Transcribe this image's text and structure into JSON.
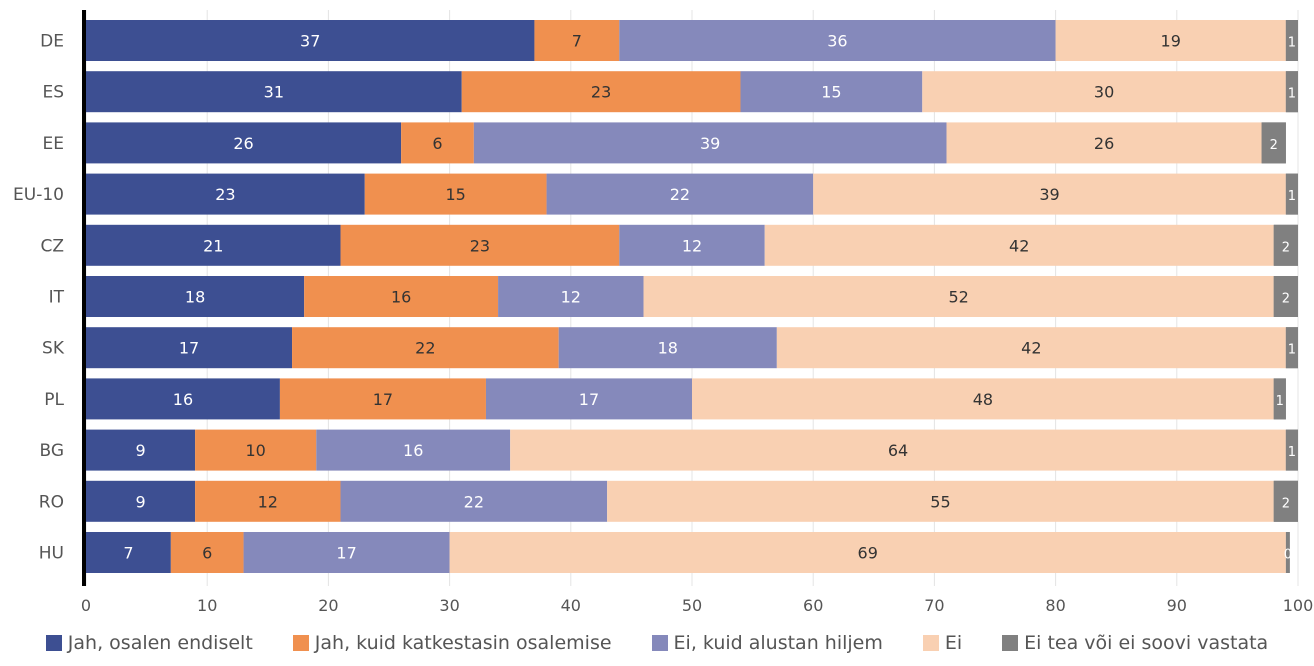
{
  "chart_data": {
    "type": "bar",
    "orientation": "horizontal",
    "stacked": true,
    "categories": [
      "DE",
      "ES",
      "EE",
      "EU-10",
      "CZ",
      "IT",
      "SK",
      "PL",
      "BG",
      "RO",
      "HU"
    ],
    "series": [
      {
        "name": "Jah, osalen endiselt",
        "color": "#3d4f92",
        "values": [
          37,
          31,
          26,
          23,
          21,
          18,
          17,
          16,
          9,
          9,
          7
        ]
      },
      {
        "name": "Jah, kuid katkestasin osalemise",
        "color": "#f0904f",
        "values": [
          7,
          23,
          6,
          15,
          23,
          16,
          22,
          17,
          10,
          12,
          6
        ]
      },
      {
        "name": "Ei, kuid alustan hiljem",
        "color": "#8589bb",
        "values": [
          36,
          15,
          39,
          22,
          12,
          12,
          18,
          17,
          16,
          22,
          17
        ]
      },
      {
        "name": "Ei",
        "color": "#f9d0b2",
        "values": [
          19,
          30,
          26,
          39,
          42,
          52,
          42,
          48,
          64,
          55,
          69
        ]
      },
      {
        "name": "Ei tea või ei soovi vastata",
        "color": "#808080",
        "values": [
          1,
          1,
          2,
          1,
          2,
          2,
          1,
          1,
          1,
          2,
          0
        ]
      }
    ],
    "xlim": [
      0,
      100
    ],
    "xticks": [
      "0",
      "10",
      "20",
      "30",
      "40",
      "50",
      "60",
      "70",
      "80",
      "90",
      "100"
    ],
    "grid": true,
    "legend_position": "bottom",
    "title": "",
    "xlabel": "",
    "ylabel": ""
  }
}
